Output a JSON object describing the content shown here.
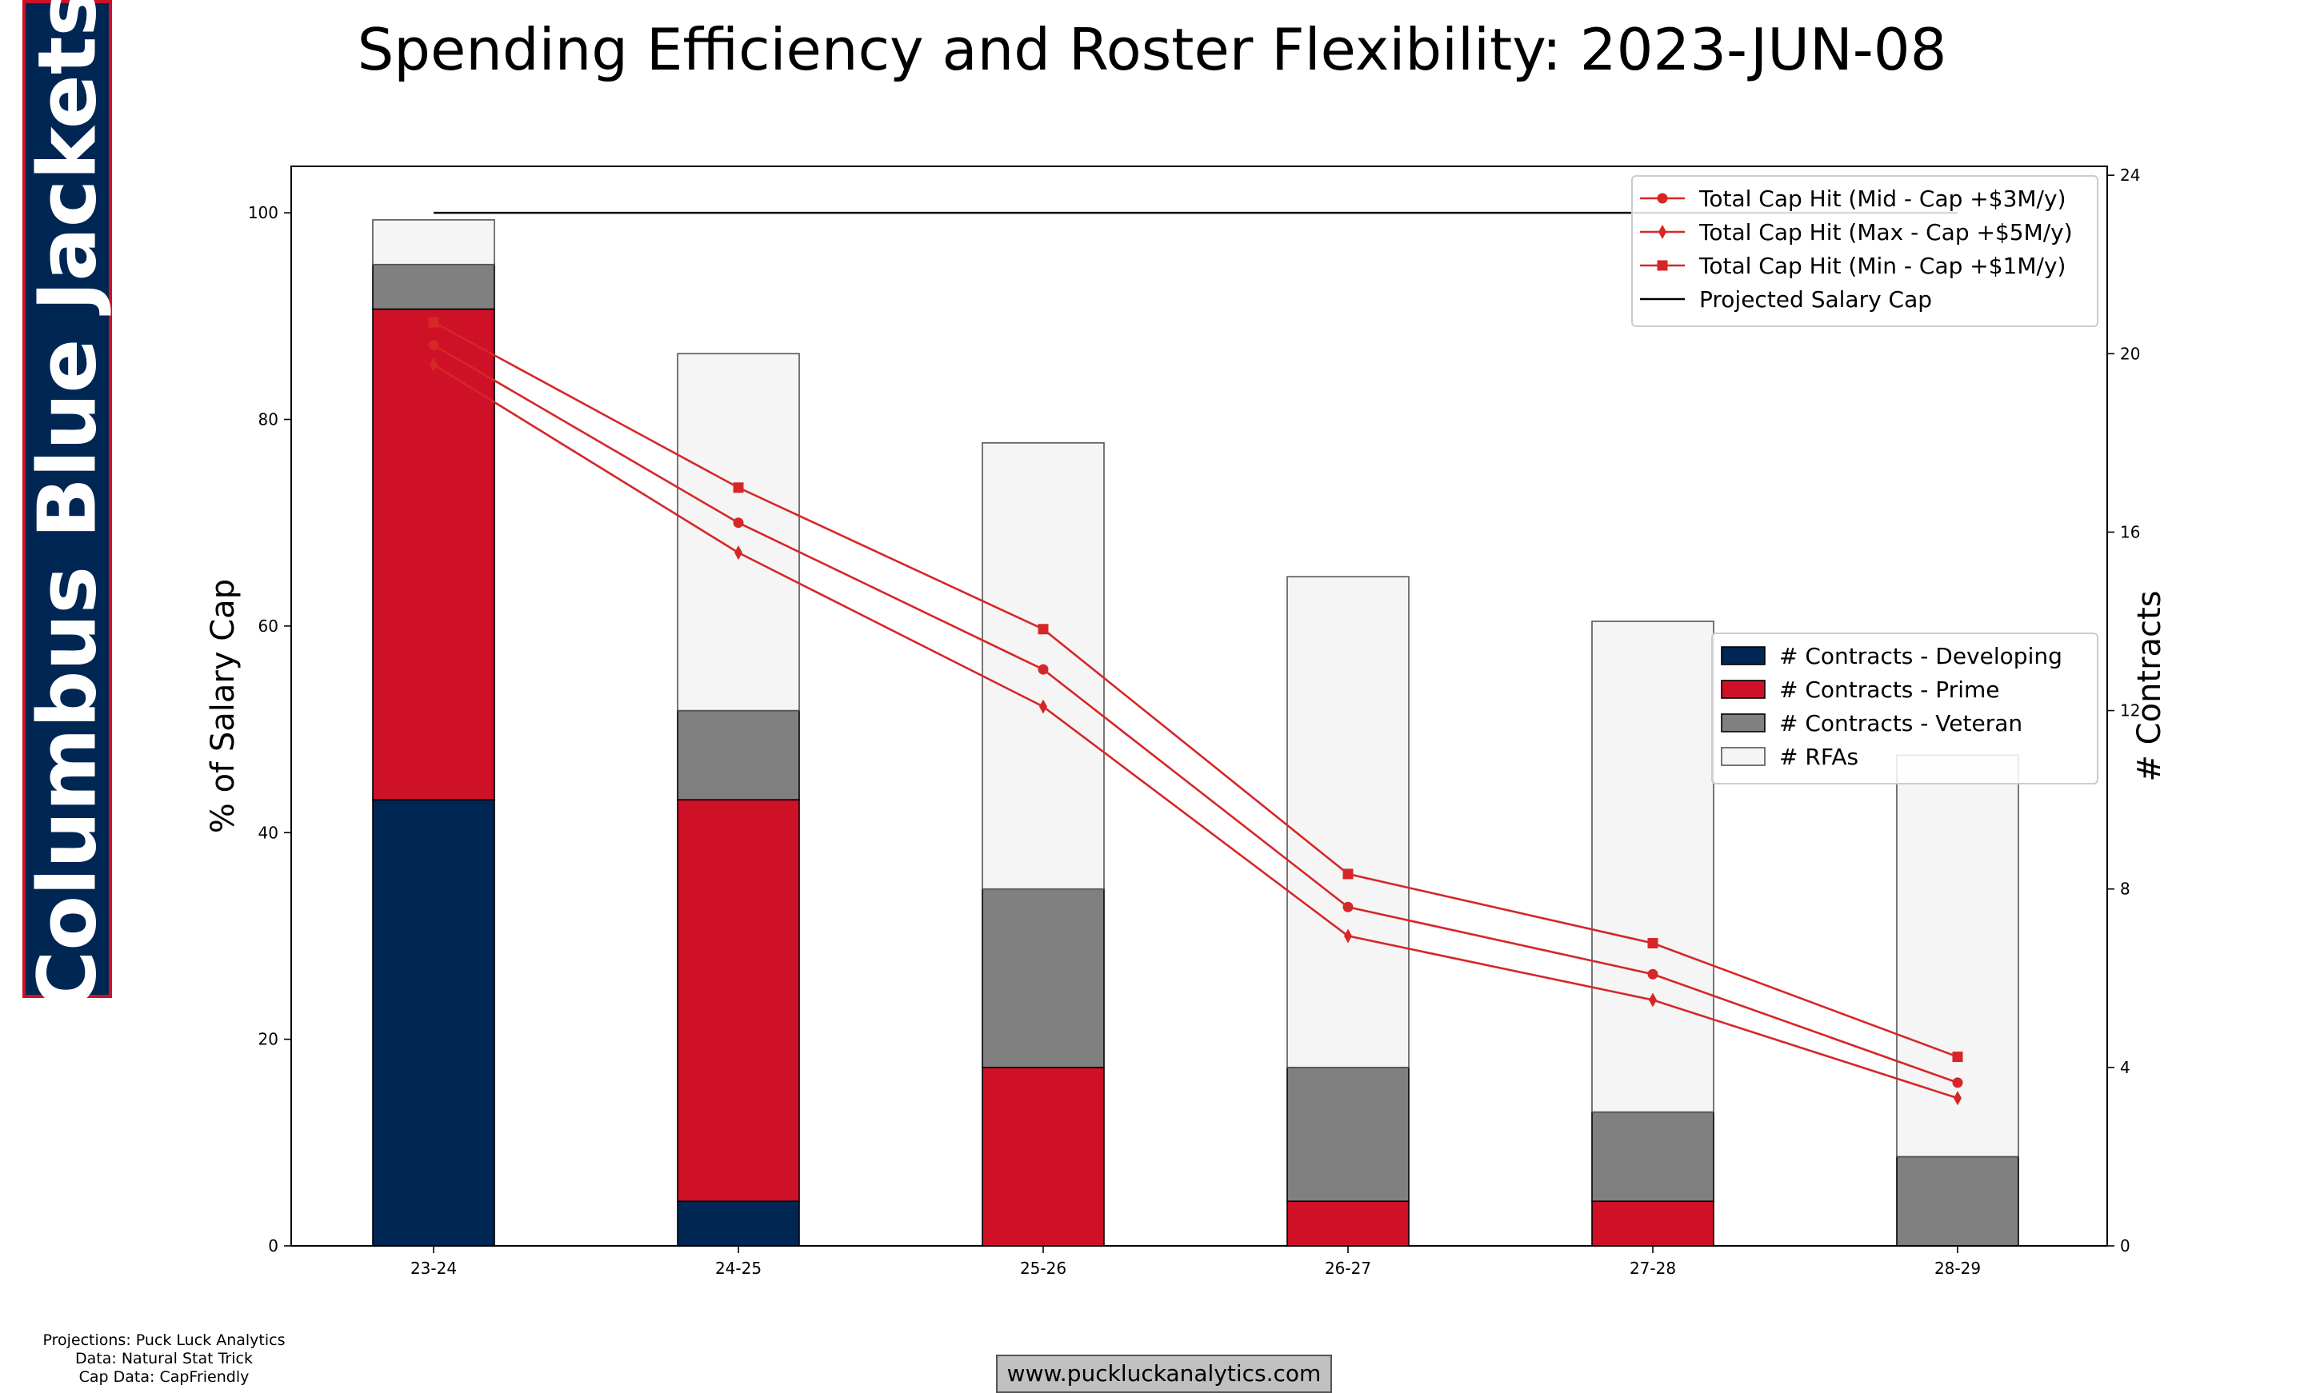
{
  "title": "Spending Efficiency and Roster Flexibility: 2023-JUN-08",
  "team_name": "Columbus Blue Jackets",
  "credits": [
    "Projections: Puck Luck Analytics",
    "Data: Natural Stat Trick",
    "Cap Data: CapFriendly"
  ],
  "website": "www.puckluckanalytics.com",
  "colors": {
    "developing": "#002654",
    "prime": "#CE1126",
    "veteran": "#808080",
    "rfa": "#f5f5f5",
    "line": "#D62728"
  },
  "chart_data": {
    "type": "bar",
    "categories": [
      "23-24",
      "24-25",
      "25-26",
      "26-27",
      "27-28",
      "28-29"
    ],
    "ylabel": "% of Salary Cap",
    "y2label": "# Contracts",
    "ylim": [
      0,
      104.5
    ],
    "y2lim": [
      0,
      24.2
    ],
    "yticks": [
      0,
      20,
      40,
      60,
      80,
      100
    ],
    "y2ticks": [
      0,
      4,
      8,
      12,
      16,
      20,
      24
    ],
    "bar_series": [
      {
        "name": "# Contracts - Developing",
        "values": [
          10,
          1,
          0,
          0,
          0,
          0
        ]
      },
      {
        "name": "# Contracts - Prime",
        "values": [
          11,
          9,
          4,
          1,
          1,
          0
        ]
      },
      {
        "name": "# Contracts - Veteran",
        "values": [
          1,
          2,
          4,
          3,
          2,
          2
        ]
      },
      {
        "name": "# RFAs",
        "values": [
          1,
          8,
          10,
          11,
          11,
          9
        ]
      }
    ],
    "line_series": [
      {
        "name": "Total Cap Hit (Mid - Cap +$3M/y)",
        "marker": "circle",
        "values": [
          87.2,
          70.0,
          55.8,
          32.8,
          26.3,
          15.8
        ]
      },
      {
        "name": "Total Cap Hit (Max - Cap +$5M/y)",
        "marker": "diamond",
        "values": [
          85.3,
          67.1,
          52.2,
          30.0,
          23.8,
          14.3
        ]
      },
      {
        "name": "Total Cap Hit (Min - Cap +$1M/y)",
        "marker": "square",
        "values": [
          89.4,
          73.4,
          59.7,
          36.0,
          29.3,
          18.3
        ]
      }
    ],
    "cap_line": {
      "name": "Projected Salary Cap",
      "value": 100
    },
    "legend_lines_position": "top-right",
    "legend_bars_position": "center-right"
  }
}
